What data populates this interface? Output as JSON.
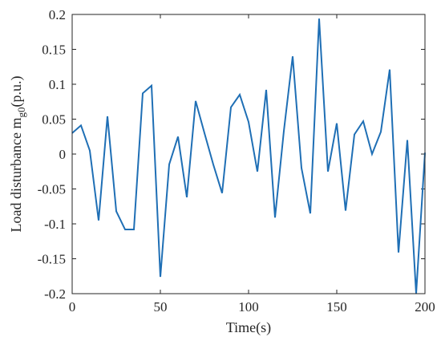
{
  "chart_data": {
    "type": "line",
    "xlabel": "Time(s)",
    "ylabel": "Load disturbance m",
    "ylabel_sub": "g0",
    "ylabel_unit": "(p.u.)",
    "xlim": [
      0,
      200
    ],
    "ylim": [
      -0.2,
      0.2
    ],
    "x_ticks": [
      0,
      50,
      100,
      150,
      200
    ],
    "x_tick_labels": [
      "0",
      "50",
      "100",
      "150",
      "200"
    ],
    "y_ticks": [
      0.2,
      0.15,
      0.1,
      0.05,
      0,
      -0.05,
      -0.1,
      -0.15,
      -0.2
    ],
    "y_tick_labels": [
      "0.2",
      "0.15",
      "0.1",
      "0.05",
      "0",
      "-0.05",
      "-0.1",
      "-0.15",
      "-0.2"
    ],
    "grid": false,
    "box": true,
    "series": [
      {
        "color": "#1f6fb5",
        "x": [
          0,
          5,
          10,
          15,
          20,
          25,
          30,
          35,
          40,
          45,
          50,
          55,
          60,
          65,
          70,
          75,
          80,
          85,
          90,
          95,
          100,
          105,
          110,
          115,
          120,
          125,
          130,
          135,
          140,
          145,
          150,
          155,
          160,
          165,
          170,
          175,
          180,
          185,
          190,
          195,
          200
        ],
        "y": [
          0.03,
          0.041,
          0.005,
          -0.095,
          0.054,
          -0.082,
          -0.108,
          -0.108,
          0.087,
          0.098,
          -0.176,
          -0.015,
          0.025,
          -0.062,
          0.076,
          0.03,
          -0.015,
          -0.056,
          0.067,
          0.085,
          0.046,
          -0.025,
          0.092,
          -0.091,
          0.033,
          0.14,
          -0.02,
          -0.085,
          0.194,
          -0.025,
          0.044,
          -0.081,
          0.028,
          0.047,
          0,
          0.032,
          0.121,
          -0.141,
          0.02,
          -0.2,
          0.002
        ]
      }
    ]
  }
}
